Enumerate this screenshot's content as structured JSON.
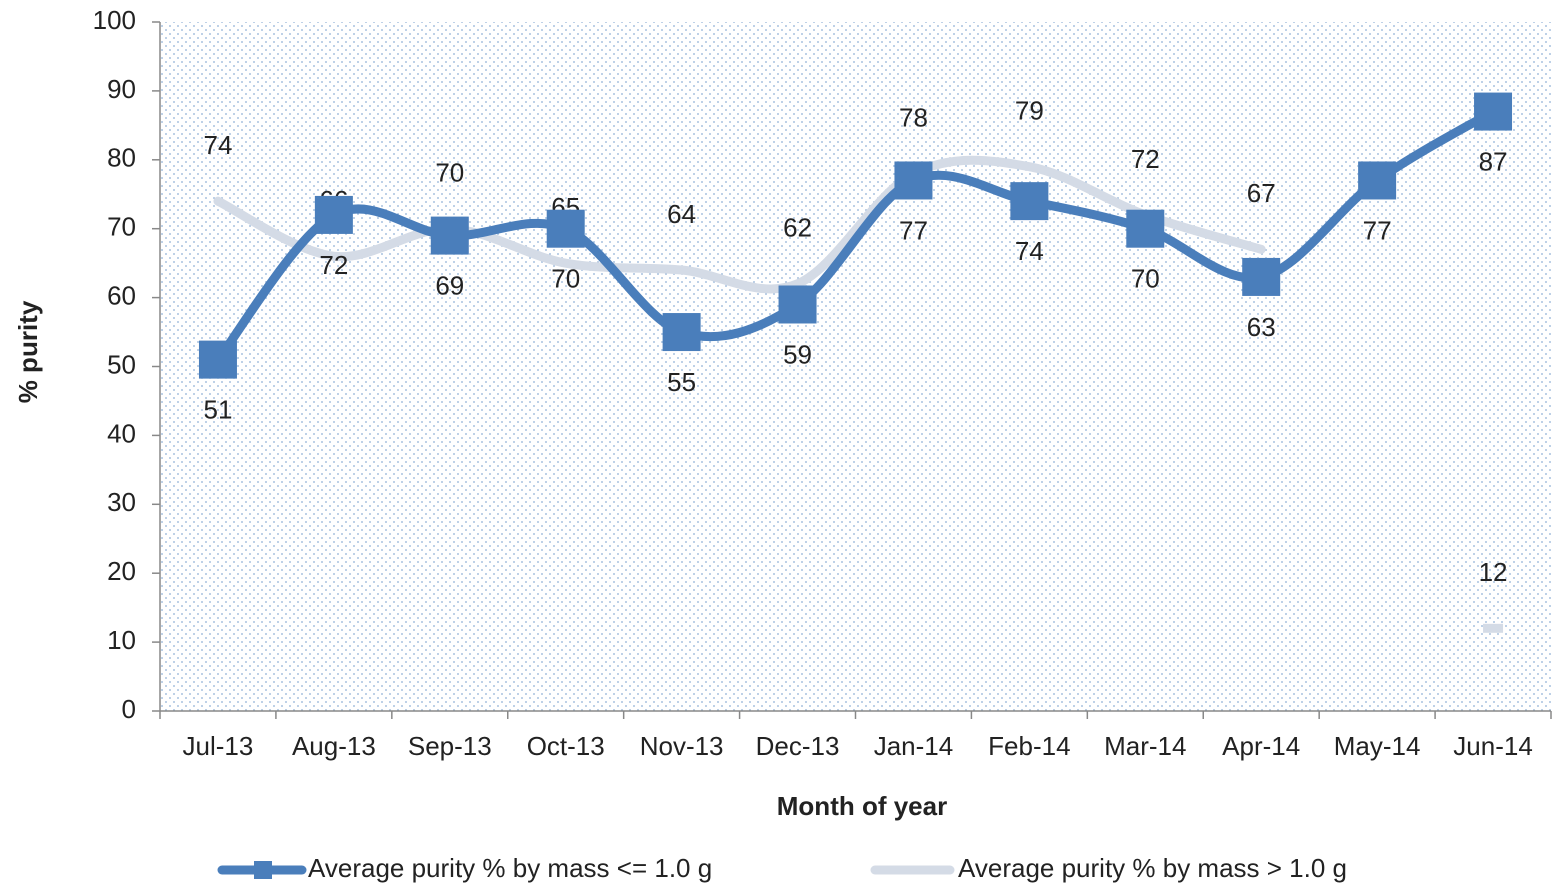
{
  "chart_data": {
    "type": "line",
    "x_label": "Month of year",
    "y_label": "% purity",
    "categories": [
      "Jul-13",
      "Aug-13",
      "Sep-13",
      "Oct-13",
      "Nov-13",
      "Dec-13",
      "Jan-14",
      "Feb-14",
      "Mar-14",
      "Apr-14",
      "May-14",
      "Jun-14"
    ],
    "series": [
      {
        "name": "Average purity % by mass <= 1.0 g",
        "color": "#4a7ebb",
        "marker": "square",
        "values": [
          51,
          72,
          69,
          70,
          55,
          59,
          77,
          74,
          70,
          63,
          77,
          87
        ]
      },
      {
        "name": "Average purity % by mass > 1.0 g",
        "color": "#d4dbe6",
        "values": [
          74,
          66,
          70,
          65,
          64,
          62,
          78,
          79,
          72,
          67,
          null,
          12
        ]
      }
    ],
    "ylim": [
      0,
      100
    ],
    "yticks": [
      0,
      10,
      20,
      30,
      40,
      50,
      60,
      70,
      80,
      90,
      100
    ],
    "grid": false,
    "legend": "bottom",
    "smooth": true
  }
}
